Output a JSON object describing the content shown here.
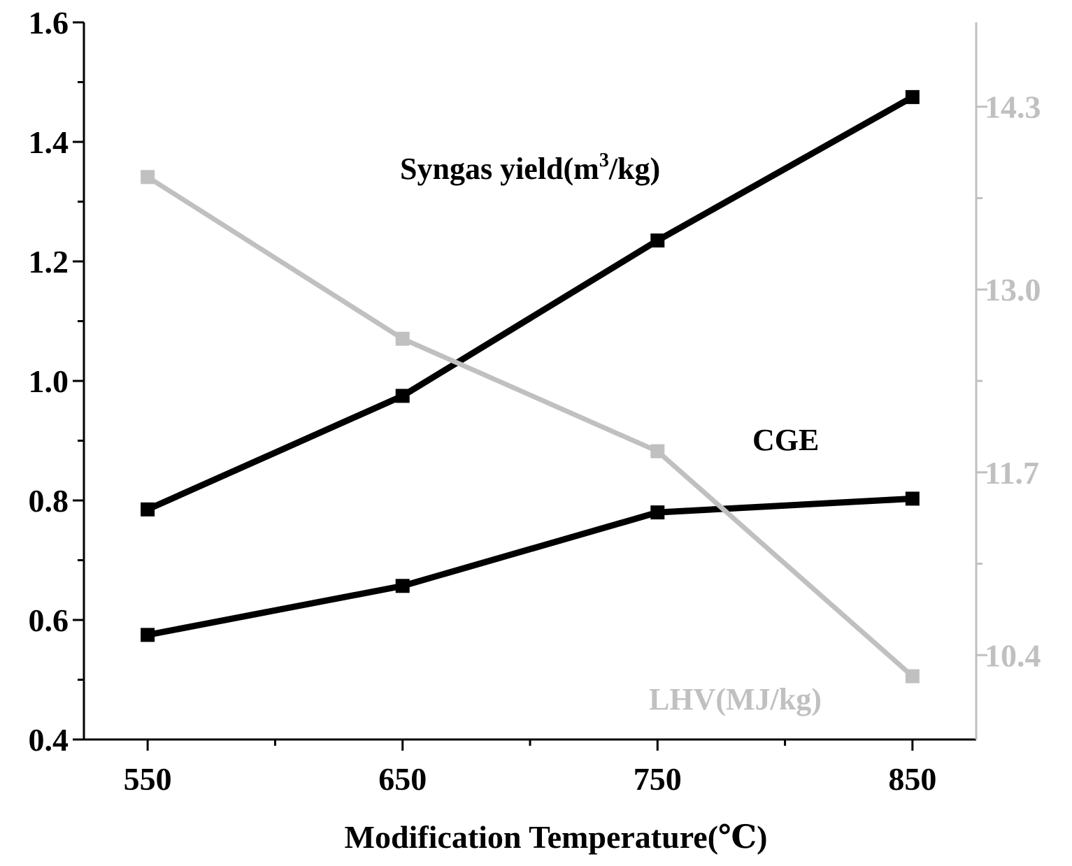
{
  "chart_data": {
    "type": "line",
    "title": "",
    "xlabel": "Modification Temperature(℃)",
    "x": [
      550,
      650,
      750,
      850
    ],
    "x_tick_labels": [
      "550",
      "650",
      "750",
      "850"
    ],
    "xlim": [
      525,
      875
    ],
    "y_left": {
      "ylim": [
        0.4,
        1.6
      ],
      "tick_labels": [
        "0.4",
        "0.6",
        "0.8",
        "1.0",
        "1.2",
        "1.4",
        "1.6"
      ],
      "color": "#000000"
    },
    "y_right": {
      "ylim": [
        9.8,
        14.9
      ],
      "tick_labels": [
        "10.4",
        "11.7",
        "13.0",
        "14.3"
      ],
      "color": "#c0c0c0"
    },
    "series": [
      {
        "name": "Syngas yield",
        "axis": "left",
        "color": "#000000",
        "values": [
          0.785,
          0.975,
          1.235,
          1.475
        ]
      },
      {
        "name": "CGE",
        "axis": "left",
        "color": "#000000",
        "values": [
          0.575,
          0.657,
          0.78,
          0.803
        ]
      },
      {
        "name": "LHV",
        "axis": "right",
        "color": "#c0c0c0",
        "values": [
          13.8,
          12.65,
          11.85,
          10.25
        ]
      }
    ],
    "annotations": {
      "syngas_prefix": "Syngas yield(m",
      "syngas_sup": "3",
      "syngas_suffix": "/kg)",
      "cge": "CGE",
      "lhv": "LHV(MJ/kg)"
    }
  }
}
